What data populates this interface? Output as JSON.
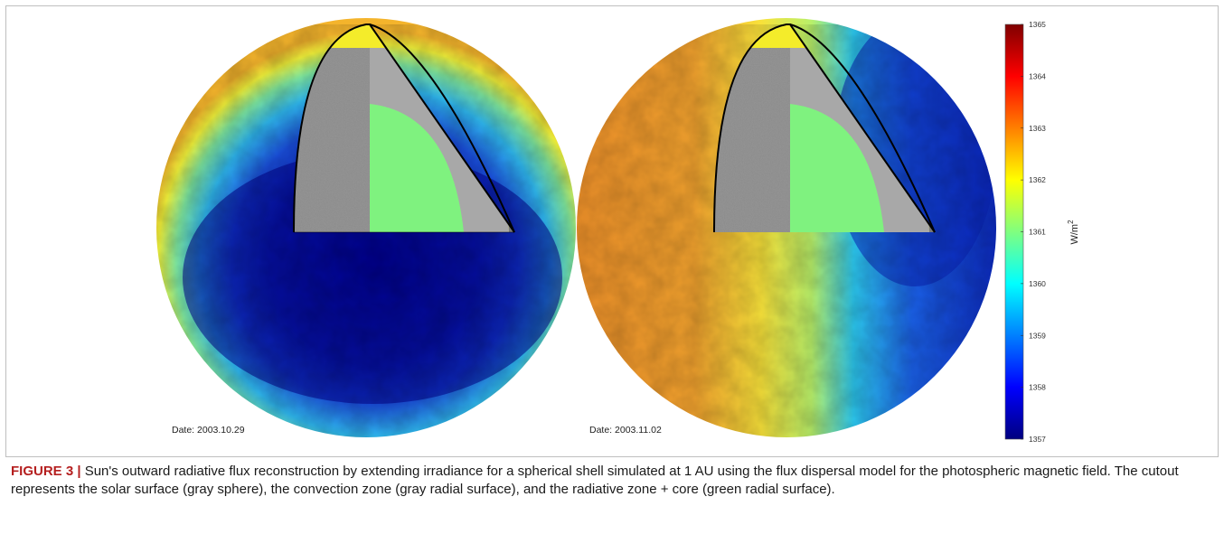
{
  "figure": {
    "panels": [
      {
        "date_label": "Date: 2003.10.29"
      },
      {
        "date_label": "Date: 2003.11.02"
      }
    ],
    "colorbar": {
      "min": 1357,
      "max": 1365,
      "ticks": [
        "1365",
        "1364",
        "1363",
        "1362",
        "1361",
        "1360",
        "1359",
        "1358",
        "1357"
      ],
      "unit_base": "W/m",
      "unit_sup": "2",
      "colormap": "jet"
    },
    "colors": {
      "cutout_surface_gray": "#8a8a8a",
      "cutout_convection_gray": "#a8a8a8",
      "cutout_core_green": "#7ff27f",
      "cutout_outline": "#000000"
    }
  },
  "caption": {
    "label": "FIGURE 3 |",
    "text": " Sun's outward radiative flux reconstruction by extending irradiance for a spherical shell simulated at 1 AU using the flux dispersal model for the photospheric magnetic field. The cutout represents the solar surface (gray sphere), the convection zone (gray radial surface), and the radiative zone + core (green radial surface)."
  }
}
